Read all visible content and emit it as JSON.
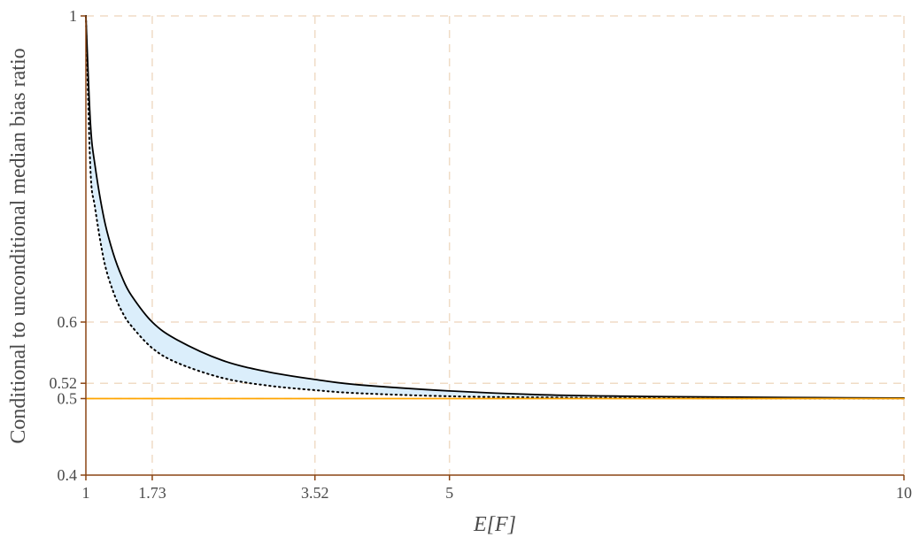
{
  "chart_data": {
    "type": "line",
    "title": "",
    "xlabel": "E[F]",
    "ylabel": "Conditional to unconditional median bias ratio",
    "xlim": [
      1,
      10
    ],
    "ylim": [
      0.4,
      1
    ],
    "x_ticks": [
      1,
      1.73,
      3.52,
      5,
      10
    ],
    "x_tick_labels": [
      "1",
      "1.73",
      "3.52",
      "5",
      "10"
    ],
    "y_ticks": [
      0.4,
      0.5,
      0.52,
      0.6,
      1
    ],
    "y_tick_labels": [
      "0.4",
      "0.5",
      "0.52",
      "0.6",
      "1"
    ],
    "grid": true,
    "grid_style": "dashed",
    "series": [
      {
        "style": "solid",
        "color": "#000000",
        "x": [
          1,
          1.05,
          1.1,
          1.2,
          1.3,
          1.4,
          1.5,
          1.73,
          2,
          2.5,
          3,
          3.52,
          4,
          5,
          6,
          7,
          8,
          9,
          10
        ],
        "y": [
          1.0,
          0.86,
          0.805,
          0.735,
          0.69,
          0.658,
          0.635,
          0.6,
          0.577,
          0.55,
          0.535,
          0.525,
          0.518,
          0.51,
          0.505,
          0.503,
          0.502,
          0.5012,
          0.5007
        ]
      },
      {
        "style": "dotted",
        "color": "#000000",
        "x": [
          1,
          1.05,
          1.1,
          1.2,
          1.3,
          1.4,
          1.5,
          1.73,
          2,
          2.5,
          3,
          3.52,
          4,
          5,
          6,
          7,
          8,
          9,
          10
        ],
        "y": [
          1.0,
          0.8,
          0.75,
          0.68,
          0.64,
          0.613,
          0.595,
          0.566,
          0.547,
          0.527,
          0.517,
          0.511,
          0.507,
          0.503,
          0.5015,
          0.5008,
          0.5004,
          0.5002,
          0.5001
        ]
      },
      {
        "style": "solid",
        "color": "#ffa500",
        "x": [
          1,
          10
        ],
        "y": [
          0.5,
          0.5
        ]
      }
    ],
    "fill_between": {
      "upper_series": 0,
      "lower_series": 1,
      "color": "#dbeefb"
    },
    "colors": {
      "axis": "#8b4513",
      "grid": "#f0dcc6",
      "text": "#4a4a4a"
    }
  }
}
